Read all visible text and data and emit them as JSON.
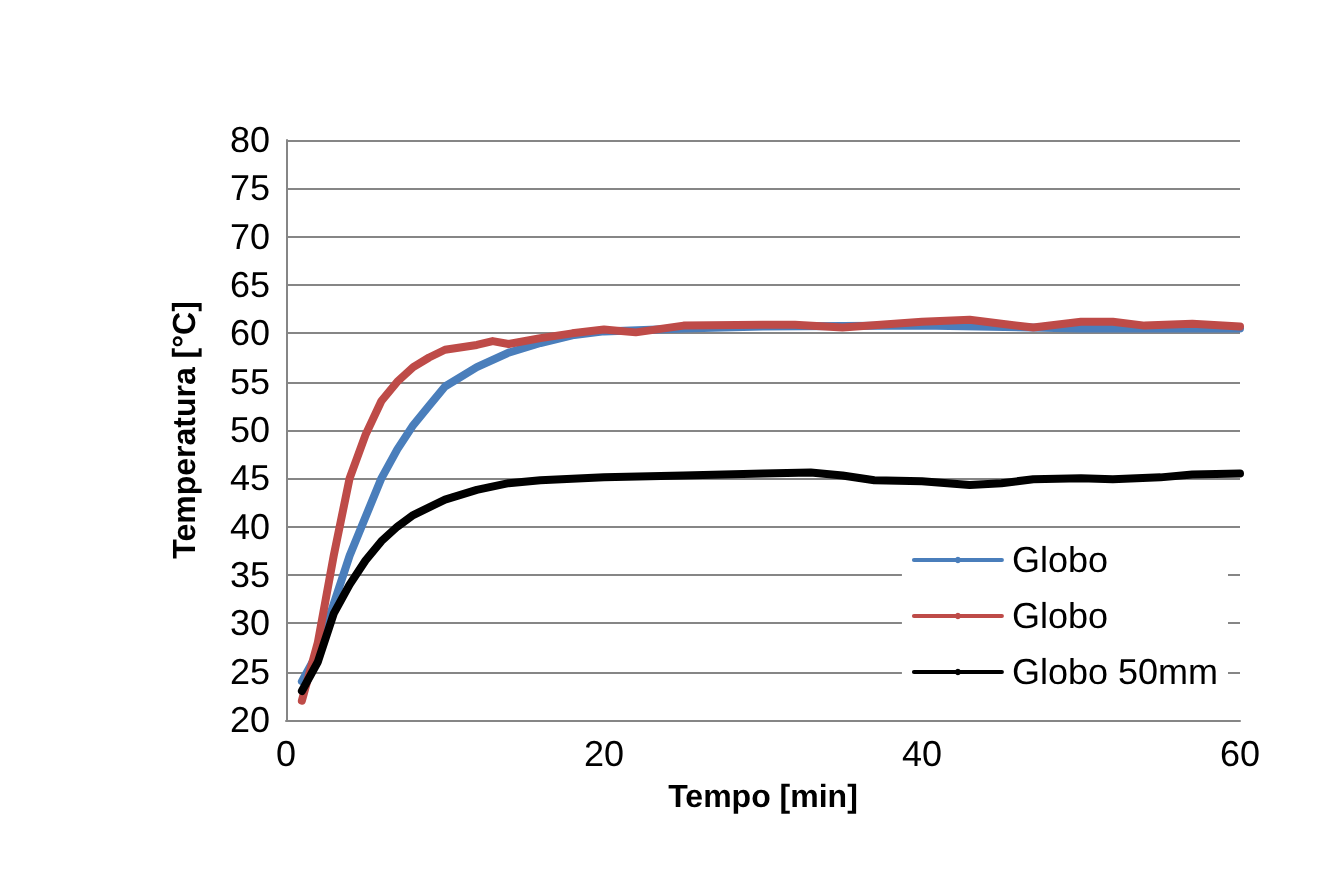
{
  "chart_data": {
    "type": "line",
    "xlabel": "Tempo [min]",
    "ylabel": "Temperatura [°C]",
    "xlim": [
      0,
      60
    ],
    "xticks": [
      0,
      20,
      40,
      60
    ],
    "ylim": [
      20,
      80
    ],
    "yticks": [
      20,
      25,
      30,
      35,
      40,
      45,
      50,
      55,
      60,
      65,
      70,
      75,
      80
    ],
    "grid": "y",
    "legend": "bottom right",
    "marker": "none",
    "line_style": "solid",
    "series": [
      {
        "name": "Globo",
        "color": "#4a7ebb",
        "x": [
          1,
          2,
          3,
          4,
          5,
          6,
          7,
          8,
          9,
          10,
          12,
          14,
          16,
          18,
          20,
          25,
          30,
          40,
          50,
          60
        ],
        "values": [
          24,
          27,
          32,
          37,
          41,
          45,
          48,
          50.5,
          52.5,
          54.5,
          56.5,
          58,
          59,
          59.8,
          60.2,
          60.5,
          60.7,
          60.8,
          60.5,
          60.5
        ]
      },
      {
        "name": "Globo",
        "color": "#be4b48",
        "x": [
          1,
          2,
          3,
          4,
          5,
          6,
          7,
          8,
          9,
          10,
          12,
          13,
          14,
          16,
          18,
          20,
          22,
          25,
          30,
          32,
          35,
          40,
          43,
          45,
          47,
          50,
          52,
          54,
          57,
          60
        ],
        "values": [
          22,
          28,
          37,
          45,
          49.5,
          53,
          55,
          56.5,
          57.5,
          58.3,
          58.8,
          59.2,
          58.9,
          59.5,
          60,
          60.4,
          60.1,
          60.8,
          60.9,
          60.9,
          60.6,
          61.2,
          61.4,
          61,
          60.6,
          61.2,
          61.2,
          60.8,
          61,
          60.7
        ]
      },
      {
        "name": "Globo 50mm",
        "color": "#000000",
        "x": [
          1,
          2,
          3,
          4,
          5,
          6,
          7,
          8,
          10,
          12,
          14,
          16,
          20,
          25,
          30,
          33,
          35,
          37,
          40,
          43,
          45,
          47,
          50,
          52,
          55,
          57,
          60
        ],
        "values": [
          23,
          26,
          31,
          34,
          36.5,
          38.5,
          40,
          41.2,
          42.8,
          43.8,
          44.5,
          44.8,
          45.1,
          45.3,
          45.5,
          45.6,
          45.3,
          44.8,
          44.7,
          44.3,
          44.5,
          44.9,
          45,
          44.9,
          45.1,
          45.4,
          45.5
        ]
      }
    ]
  }
}
